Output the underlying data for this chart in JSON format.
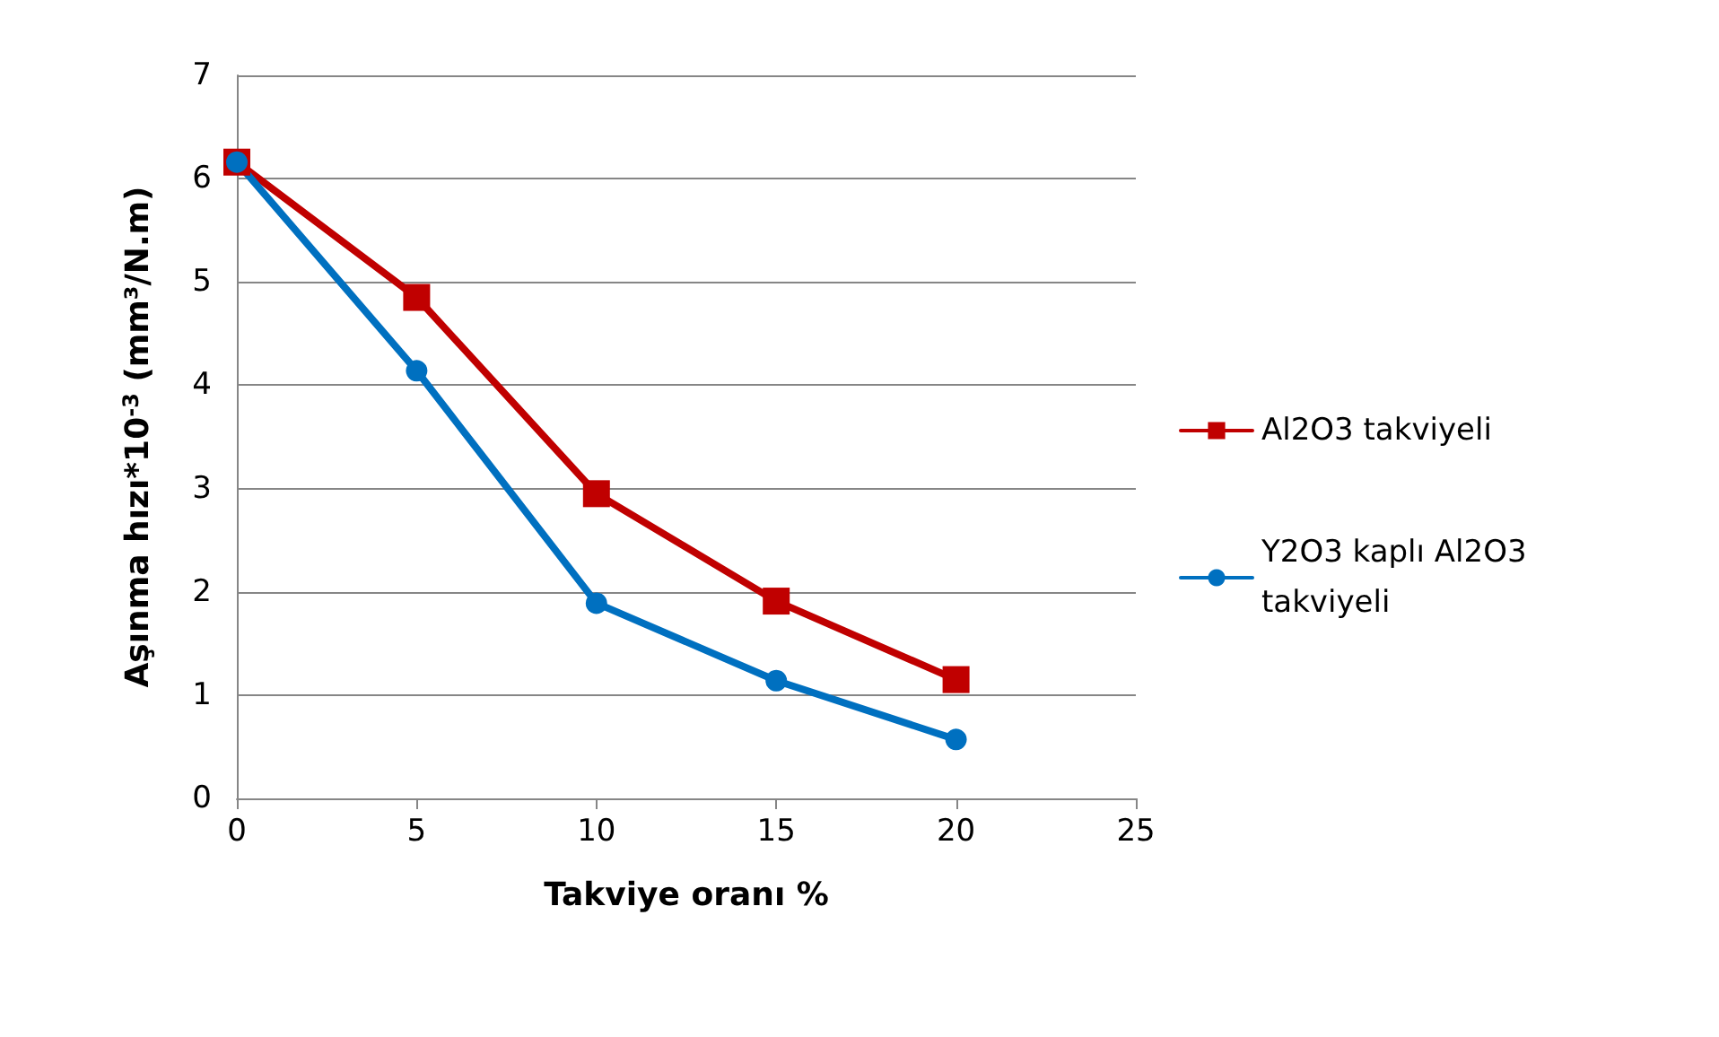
{
  "chart_data": {
    "type": "line",
    "xlabel": "Takviye oranı %",
    "ylabel": "Aşınma hızı*10$^{-3}$ (mm³/N.m)",
    "x": [
      0,
      5,
      10,
      15,
      20
    ],
    "series": [
      {
        "name": "Al2O3 takviyeli",
        "color": "#c00000",
        "marker": "square",
        "values": [
          6.16,
          4.85,
          2.95,
          1.91,
          1.15
        ]
      },
      {
        "name": "Y2O3 kaplı Al2O3 takviyeli",
        "color": "#0070c0",
        "marker": "circle",
        "values": [
          6.16,
          4.14,
          1.89,
          1.14,
          0.57
        ]
      }
    ],
    "xlim": [
      0,
      25
    ],
    "xticks": [
      0,
      5,
      10,
      15,
      20,
      25
    ],
    "ylim": [
      0,
      7
    ],
    "yticks": [
      0,
      1,
      2,
      3,
      4,
      5,
      6,
      7
    ],
    "grid": "y",
    "legend": "right",
    "line_style": "solid"
  }
}
